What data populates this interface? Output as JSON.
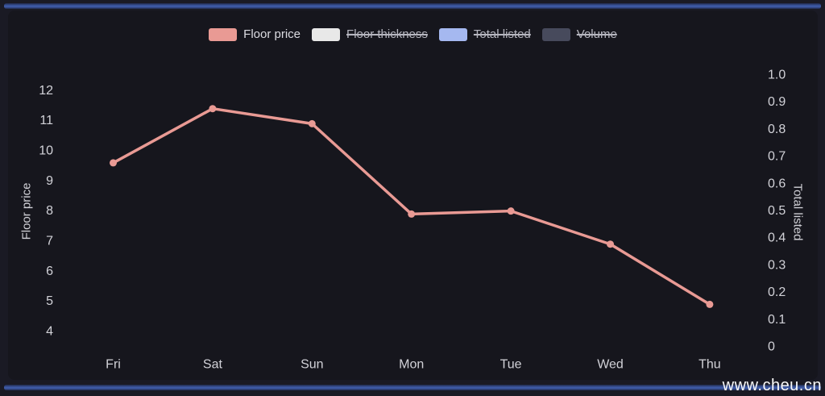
{
  "page": {
    "watermark": "www.cheu.cn"
  },
  "colors": {
    "background": "#1a1a24",
    "panel": "#16161d",
    "accent_bar": "#3d59a4",
    "axis_text": "#d2d2d8",
    "series_line": "#e99a94"
  },
  "legend": {
    "items": [
      {
        "label": "Floor price",
        "color": "#e99a94",
        "active": true
      },
      {
        "label": "Floor thickness",
        "color": "#e8e8e8",
        "active": false
      },
      {
        "label": "Total listed",
        "color": "#a5b8f0",
        "active": false
      },
      {
        "label": "Volume",
        "color": "#474a5c",
        "active": false
      }
    ]
  },
  "chart_data": {
    "type": "line",
    "title": "",
    "categories": [
      "Fri",
      "Sat",
      "Sun",
      "Mon",
      "Tue",
      "Wed",
      "Thu"
    ],
    "series": [
      {
        "name": "Floor price",
        "color": "#e99a94",
        "values": [
          9.6,
          11.4,
          10.9,
          7.9,
          8.0,
          6.9,
          4.9
        ]
      }
    ],
    "xlabel": "",
    "left_axis": {
      "label": "Floor price",
      "ticks": [
        "12",
        "11",
        "10",
        "9",
        "8",
        "7",
        "6",
        "5",
        "4"
      ],
      "range": [
        4,
        12
      ]
    },
    "right_axis": {
      "label": "Total listed",
      "ticks": [
        "1.0",
        "0.9",
        "0.8",
        "0.7",
        "0.6",
        "0.5",
        "0.4",
        "0.3",
        "0.2",
        "0.1",
        "0"
      ],
      "range": [
        0,
        1
      ]
    },
    "grid": false,
    "legend_position": "top"
  }
}
